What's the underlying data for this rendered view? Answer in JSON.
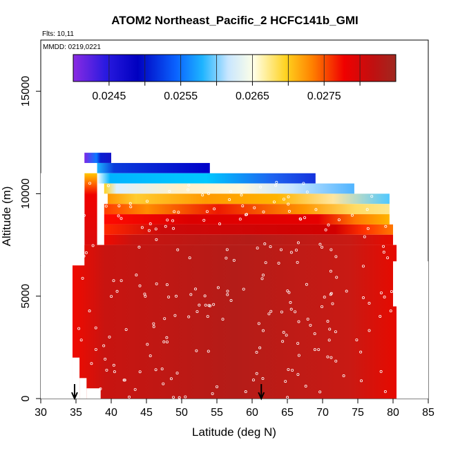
{
  "chart_data": {
    "type": "heatmap",
    "title": "ATOM2 Northeast_Pacific_2 HCFC141b_GMI",
    "flights_text": "Flts: 10,11",
    "dates_text": "MMDD: 0219,0221",
    "xlabel": "Latitude (deg N)",
    "ylabel": "Altitude (m)",
    "xlim": [
      30,
      85
    ],
    "ylim": [
      0,
      17500
    ],
    "x_ticks": [
      "30",
      "35",
      "40",
      "45",
      "50",
      "55",
      "60",
      "65",
      "70",
      "75",
      "80",
      "85"
    ],
    "y_ticks": [
      "0",
      "5000",
      "10000",
      "15000"
    ],
    "colorbar": {
      "range": [
        0.024,
        0.0285
      ],
      "ticks": [
        "0.0245",
        "0.0255",
        "0.0265",
        "0.0275"
      ],
      "tick_values": [
        0.0245,
        0.0255,
        0.0265,
        0.0275
      ],
      "colors": [
        "#7b28e8",
        "#1414c8",
        "#0a4af0",
        "#19b4ff",
        "#d8f0ff",
        "#ffffe0",
        "#ffd21e",
        "#ff7800",
        "#ee0000",
        "#b41c14",
        "#9a2220"
      ]
    },
    "bands": [
      {
        "alt": [
          11500,
          12000
        ],
        "lat": [
          36.2,
          40
        ],
        "value": 0.0249
      },
      {
        "alt": [
          11000,
          11500
        ],
        "lat": [
          38,
          54
        ],
        "value": 0.0246
      },
      {
        "alt": [
          10500,
          11000
        ],
        "lat": [
          38,
          69
        ],
        "value": 0.0251
      },
      {
        "alt": [
          10000,
          10500
        ],
        "lat": [
          39,
          74.5
        ],
        "value": 0.0257
      },
      {
        "alt": [
          9500,
          10000
        ],
        "lat": [
          39.5,
          79.5
        ],
        "value": 0.0263
      },
      {
        "alt": [
          9000,
          9500
        ],
        "lat": [
          39,
          79.5
        ],
        "value": 0.0269
      },
      {
        "alt": [
          8500,
          9000
        ],
        "lat": [
          39,
          79.5
        ],
        "value": 0.0274
      },
      {
        "alt": [
          8000,
          8500
        ],
        "lat": [
          39,
          80
        ],
        "value": 0.0277
      },
      {
        "alt": [
          7500,
          8000
        ],
        "lat": [
          39,
          80
        ],
        "value": 0.0279
      },
      {
        "alt": [
          0,
          7500
        ],
        "lat": [
          34.5,
          80.5
        ],
        "value": 0.0281
      }
    ],
    "arrows_lat": [
      34.8,
      61.3
    ]
  }
}
